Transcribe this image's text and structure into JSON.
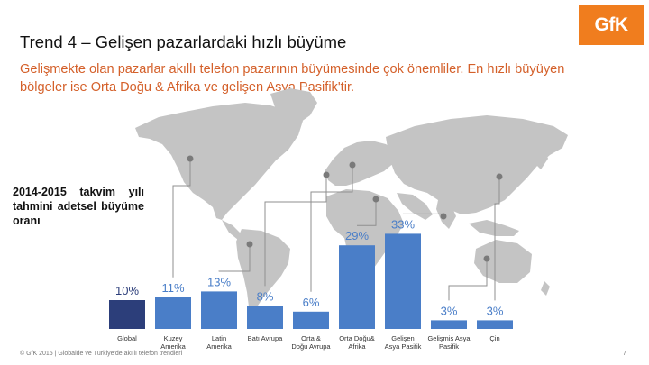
{
  "logo": {
    "text": "GfK",
    "color": "#f07d1e"
  },
  "header": {
    "title": "Trend 4 – Gelişen pazarlardaki hızlı büyüme",
    "subtitle": "Gelişmekte olan pazarlar akıllı telefon pazarının büyümesinde çok önemliler. En hızlı büyüyen bölgeler ise Orta Doğu & Afrika ve gelişen Asya Pasifik'tir."
  },
  "side_label": "2014-2015 takvim yılı tahmini adetsel büyüme oranı",
  "footer": {
    "text": "© GfK 2015 | Globalde ve Türkiye'de akıllı telefon trendleri",
    "page": "7"
  },
  "colors": {
    "bar_global": "#2c3e7a",
    "bar_region": "#4a7ec8",
    "label_global": "#2c3e7a",
    "label_region": "#4a7ec8",
    "map": "#c4c4c4",
    "connector": "#8f8f8f",
    "title": "#111111",
    "subtitle": "#d4602a"
  },
  "chart_data": {
    "type": "bar",
    "categories": [
      "Global",
      "Kuzey Amerika",
      "Latin Amerika",
      "Batı Avrupa",
      "Orta & Doğu Avrupa",
      "Orta Doğu& Afrika",
      "Gelişen Asya Pasifik",
      "Gelişmiş Asya Pasifik",
      "Çin"
    ],
    "values": [
      10,
      11,
      13,
      8,
      6,
      29,
      33,
      3,
      3
    ],
    "data_labels": [
      "10%",
      "11%",
      "13%",
      "8%",
      "6%",
      "29%",
      "33%",
      "3%",
      "3%"
    ],
    "ylim": [
      0,
      35
    ],
    "grid": false,
    "legend": "none",
    "background": "world map"
  }
}
